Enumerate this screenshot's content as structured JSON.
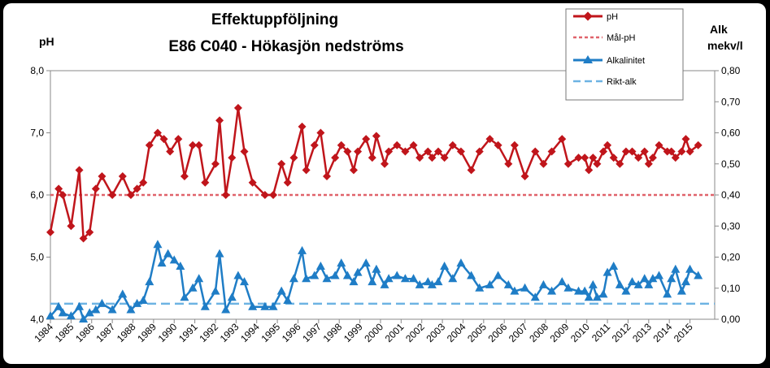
{
  "chart_data": {
    "type": "line",
    "title": "Effektuppföljning",
    "subtitle": "E86 C040 - Hökasjön nedströms",
    "y_left_label": "pH",
    "y_right_label": [
      "Alk",
      "mekv/l"
    ],
    "y_left_range": [
      4.0,
      8.0
    ],
    "y_right_range": [
      0.0,
      0.8
    ],
    "y_left_ticks": [
      "4,0",
      "5,0",
      "6,0",
      "7,0",
      "8,0"
    ],
    "y_right_ticks": [
      "0,00",
      "0,10",
      "0,20",
      "0,30",
      "0,40",
      "0,50",
      "0,60",
      "0,70",
      "0,80"
    ],
    "x_range": [
      1984.0,
      2016.2
    ],
    "x_ticks": [
      "1984",
      "1985",
      "1986",
      "1987",
      "1988",
      "1989",
      "1990",
      "1991",
      "1992",
      "1993",
      "1994",
      "1995",
      "1996",
      "1997",
      "1998",
      "1999",
      "2000",
      "2001",
      "2002",
      "2003",
      "2004",
      "2005",
      "2006",
      "2007",
      "2008",
      "2009",
      "2010",
      "2011",
      "2012",
      "2013",
      "2014",
      "2015"
    ],
    "legend": [
      "pH",
      "Mål-pH",
      "Alkalinitet",
      "Rikt-alk"
    ],
    "colors": {
      "ph": "#C0151B",
      "mal_ph": "#E0636B",
      "alk": "#1F7DC6",
      "rikt_alk": "#6DB3E3"
    },
    "mal_ph_value": 6.0,
    "rikt_alk_value": 0.05,
    "series_ph": [
      [
        1984.0,
        5.4
      ],
      [
        1984.4,
        6.1
      ],
      [
        1984.6,
        6.0
      ],
      [
        1985.0,
        5.5
      ],
      [
        1985.4,
        6.4
      ],
      [
        1985.6,
        5.3
      ],
      [
        1985.9,
        5.4
      ],
      [
        1986.2,
        6.1
      ],
      [
        1986.5,
        6.3
      ],
      [
        1987.0,
        6.0
      ],
      [
        1987.5,
        6.3
      ],
      [
        1987.9,
        6.0
      ],
      [
        1988.2,
        6.1
      ],
      [
        1988.5,
        6.2
      ],
      [
        1988.8,
        6.8
      ],
      [
        1989.2,
        7.0
      ],
      [
        1989.5,
        6.9
      ],
      [
        1989.8,
        6.7
      ],
      [
        1990.2,
        6.9
      ],
      [
        1990.5,
        6.3
      ],
      [
        1990.9,
        6.8
      ],
      [
        1991.2,
        6.8
      ],
      [
        1991.5,
        6.2
      ],
      [
        1992.0,
        6.5
      ],
      [
        1992.2,
        7.2
      ],
      [
        1992.5,
        6.0
      ],
      [
        1992.8,
        6.6
      ],
      [
        1993.1,
        7.4
      ],
      [
        1993.4,
        6.7
      ],
      [
        1993.8,
        6.2
      ],
      [
        1994.4,
        6.0
      ],
      [
        1994.8,
        6.0
      ],
      [
        1995.2,
        6.5
      ],
      [
        1995.5,
        6.2
      ],
      [
        1995.8,
        6.6
      ],
      [
        1996.2,
        7.1
      ],
      [
        1996.4,
        6.4
      ],
      [
        1996.8,
        6.8
      ],
      [
        1997.1,
        7.0
      ],
      [
        1997.4,
        6.3
      ],
      [
        1997.8,
        6.6
      ],
      [
        1998.1,
        6.8
      ],
      [
        1998.4,
        6.7
      ],
      [
        1998.7,
        6.4
      ],
      [
        1998.9,
        6.7
      ],
      [
        1999.3,
        6.9
      ],
      [
        1999.6,
        6.6
      ],
      [
        1999.8,
        6.95
      ],
      [
        2000.2,
        6.5
      ],
      [
        2000.4,
        6.7
      ],
      [
        2000.8,
        6.8
      ],
      [
        2001.2,
        6.7
      ],
      [
        2001.6,
        6.8
      ],
      [
        2001.9,
        6.6
      ],
      [
        2002.3,
        6.7
      ],
      [
        2002.5,
        6.6
      ],
      [
        2002.8,
        6.7
      ],
      [
        2003.1,
        6.6
      ],
      [
        2003.5,
        6.8
      ],
      [
        2003.9,
        6.7
      ],
      [
        2004.4,
        6.4
      ],
      [
        2004.8,
        6.7
      ],
      [
        2005.3,
        6.9
      ],
      [
        2005.7,
        6.8
      ],
      [
        2006.2,
        6.5
      ],
      [
        2006.5,
        6.8
      ],
      [
        2007.0,
        6.3
      ],
      [
        2007.5,
        6.7
      ],
      [
        2007.9,
        6.5
      ],
      [
        2008.3,
        6.7
      ],
      [
        2008.8,
        6.9
      ],
      [
        2009.1,
        6.5
      ],
      [
        2009.6,
        6.6
      ],
      [
        2009.9,
        6.6
      ],
      [
        2010.1,
        6.4
      ],
      [
        2010.3,
        6.6
      ],
      [
        2010.5,
        6.5
      ],
      [
        2010.8,
        6.7
      ],
      [
        2011.0,
        6.8
      ],
      [
        2011.3,
        6.6
      ],
      [
        2011.6,
        6.5
      ],
      [
        2011.9,
        6.7
      ],
      [
        2012.2,
        6.7
      ],
      [
        2012.5,
        6.6
      ],
      [
        2012.8,
        6.7
      ],
      [
        2013.0,
        6.5
      ],
      [
        2013.2,
        6.6
      ],
      [
        2013.5,
        6.8
      ],
      [
        2013.9,
        6.7
      ],
      [
        2014.1,
        6.7
      ],
      [
        2014.3,
        6.6
      ],
      [
        2014.6,
        6.7
      ],
      [
        2014.8,
        6.9
      ],
      [
        2015.0,
        6.7
      ],
      [
        2015.4,
        6.8
      ]
    ],
    "series_alk": [
      [
        1984.0,
        0.01
      ],
      [
        1984.4,
        0.04
      ],
      [
        1984.6,
        0.02
      ],
      [
        1985.0,
        0.01
      ],
      [
        1985.4,
        0.04
      ],
      [
        1985.6,
        0.0
      ],
      [
        1985.9,
        0.02
      ],
      [
        1986.2,
        0.03
      ],
      [
        1986.5,
        0.05
      ],
      [
        1987.0,
        0.03
      ],
      [
        1987.5,
        0.08
      ],
      [
        1987.9,
        0.03
      ],
      [
        1988.2,
        0.05
      ],
      [
        1988.5,
        0.06
      ],
      [
        1988.8,
        0.12
      ],
      [
        1989.2,
        0.24
      ],
      [
        1989.4,
        0.18
      ],
      [
        1989.7,
        0.21
      ],
      [
        1990.0,
        0.19
      ],
      [
        1990.3,
        0.17
      ],
      [
        1990.5,
        0.07
      ],
      [
        1990.9,
        0.1
      ],
      [
        1991.2,
        0.13
      ],
      [
        1991.5,
        0.04
      ],
      [
        1992.0,
        0.09
      ],
      [
        1992.2,
        0.21
      ],
      [
        1992.5,
        0.03
      ],
      [
        1992.8,
        0.07
      ],
      [
        1993.1,
        0.14
      ],
      [
        1993.4,
        0.12
      ],
      [
        1993.8,
        0.04
      ],
      [
        1994.4,
        0.04
      ],
      [
        1994.8,
        0.04
      ],
      [
        1995.2,
        0.09
      ],
      [
        1995.5,
        0.06
      ],
      [
        1995.8,
        0.13
      ],
      [
        1996.2,
        0.22
      ],
      [
        1996.4,
        0.13
      ],
      [
        1996.8,
        0.14
      ],
      [
        1997.1,
        0.17
      ],
      [
        1997.4,
        0.13
      ],
      [
        1997.8,
        0.14
      ],
      [
        1998.1,
        0.18
      ],
      [
        1998.4,
        0.14
      ],
      [
        1998.7,
        0.12
      ],
      [
        1998.9,
        0.15
      ],
      [
        1999.3,
        0.18
      ],
      [
        1999.6,
        0.12
      ],
      [
        1999.8,
        0.16
      ],
      [
        2000.2,
        0.11
      ],
      [
        2000.4,
        0.13
      ],
      [
        2000.8,
        0.14
      ],
      [
        2001.2,
        0.13
      ],
      [
        2001.6,
        0.13
      ],
      [
        2001.9,
        0.11
      ],
      [
        2002.3,
        0.12
      ],
      [
        2002.5,
        0.11
      ],
      [
        2002.8,
        0.12
      ],
      [
        2003.1,
        0.17
      ],
      [
        2003.5,
        0.13
      ],
      [
        2003.9,
        0.18
      ],
      [
        2004.4,
        0.14
      ],
      [
        2004.8,
        0.1
      ],
      [
        2005.3,
        0.11
      ],
      [
        2005.7,
        0.14
      ],
      [
        2006.2,
        0.11
      ],
      [
        2006.5,
        0.09
      ],
      [
        2007.0,
        0.1
      ],
      [
        2007.5,
        0.07
      ],
      [
        2007.9,
        0.11
      ],
      [
        2008.3,
        0.09
      ],
      [
        2008.8,
        0.12
      ],
      [
        2009.1,
        0.1
      ],
      [
        2009.6,
        0.09
      ],
      [
        2009.9,
        0.09
      ],
      [
        2010.1,
        0.07
      ],
      [
        2010.3,
        0.11
      ],
      [
        2010.5,
        0.07
      ],
      [
        2010.8,
        0.08
      ],
      [
        2011.0,
        0.15
      ],
      [
        2011.3,
        0.17
      ],
      [
        2011.6,
        0.11
      ],
      [
        2011.9,
        0.09
      ],
      [
        2012.2,
        0.12
      ],
      [
        2012.5,
        0.11
      ],
      [
        2012.8,
        0.13
      ],
      [
        2013.0,
        0.11
      ],
      [
        2013.2,
        0.13
      ],
      [
        2013.5,
        0.14
      ],
      [
        2013.9,
        0.08
      ],
      [
        2014.1,
        0.13
      ],
      [
        2014.3,
        0.16
      ],
      [
        2014.6,
        0.09
      ],
      [
        2014.8,
        0.12
      ],
      [
        2015.0,
        0.16
      ],
      [
        2015.4,
        0.14
      ]
    ]
  }
}
